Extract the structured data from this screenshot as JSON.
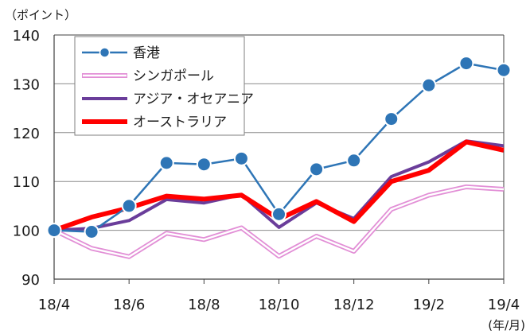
{
  "chart_data": {
    "type": "line",
    "y_unit_label": "（ポイント）",
    "x_unit_label": "(年/月)",
    "ylim": [
      90,
      140
    ],
    "yticks": [
      "90",
      "100",
      "110",
      "120",
      "130",
      "140"
    ],
    "x_tick_labels": [
      "18/4",
      "18/6",
      "18/8",
      "18/10",
      "18/12",
      "19/2",
      "19/4"
    ],
    "x": [
      "18/4",
      "18/5",
      "18/6",
      "18/7",
      "18/8",
      "18/9",
      "18/10",
      "18/11",
      "18/12",
      "19/1",
      "19/2",
      "19/3",
      "19/4"
    ],
    "grid": true,
    "legend_position": "top-left",
    "series": [
      {
        "name": "香港",
        "color": "#2e75b6",
        "marker": true,
        "values": [
          100,
          99.7,
          105,
          113.8,
          113.5,
          114.7,
          103.3,
          112.5,
          114.3,
          122.8,
          129.7,
          134.2,
          132.8
        ]
      },
      {
        "name": "シンガポール",
        "color": "#e28fd6",
        "outline": true,
        "values": [
          100,
          96.3,
          94.6,
          99.4,
          98.1,
          100.5,
          94.7,
          98.8,
          95.7,
          104.3,
          107.2,
          108.9,
          108.4
        ]
      },
      {
        "name": "アジア・オセアニア",
        "color": "#6a3d9a",
        "values": [
          100,
          100.4,
          102,
          106.3,
          105.6,
          107.3,
          100.6,
          105.6,
          102.4,
          111,
          114,
          118.3,
          117.3
        ]
      },
      {
        "name": "オーストラリア",
        "color": "#ff0000",
        "values": [
          100,
          102.7,
          104.6,
          107,
          106.4,
          107.2,
          102.3,
          105.9,
          101.8,
          110,
          112.3,
          118.1,
          116.4
        ]
      }
    ]
  }
}
